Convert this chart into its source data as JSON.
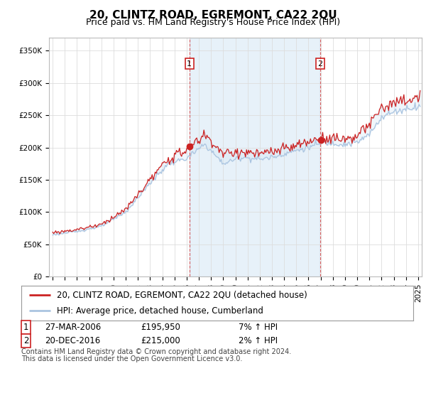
{
  "title": "20, CLINTZ ROAD, EGREMONT, CA22 2QU",
  "subtitle": "Price paid vs. HM Land Registry's House Price Index (HPI)",
  "ylabel_ticks": [
    "£0",
    "£50K",
    "£100K",
    "£150K",
    "£200K",
    "£250K",
    "£300K",
    "£350K"
  ],
  "ytick_values": [
    0,
    50000,
    100000,
    150000,
    200000,
    250000,
    300000,
    350000
  ],
  "ylim": [
    0,
    370000
  ],
  "xlim_start": 1994.7,
  "xlim_end": 2025.3,
  "hpi_color": "#aac4e0",
  "price_color": "#cc2222",
  "fill_color": "#d0e4f4",
  "marker1_x": 2006.23,
  "marker1_y": 195950,
  "marker2_x": 2016.97,
  "marker2_y": 215000,
  "legend_line1": "20, CLINTZ ROAD, EGREMONT, CA22 2QU (detached house)",
  "legend_line2": "HPI: Average price, detached house, Cumberland",
  "table_row1": [
    "1",
    "27-MAR-2006",
    "£195,950",
    "7% ↑ HPI"
  ],
  "table_row2": [
    "2",
    "20-DEC-2016",
    "£215,000",
    "2% ↑ HPI"
  ],
  "footnote1": "Contains HM Land Registry data © Crown copyright and database right 2024.",
  "footnote2": "This data is licensed under the Open Government Licence v3.0.",
  "background_color": "#ffffff",
  "grid_color": "#dddddd",
  "title_fontsize": 11,
  "subtitle_fontsize": 9,
  "tick_fontsize": 7.5,
  "legend_fontsize": 8.5,
  "table_fontsize": 8.5,
  "footnote_fontsize": 7
}
